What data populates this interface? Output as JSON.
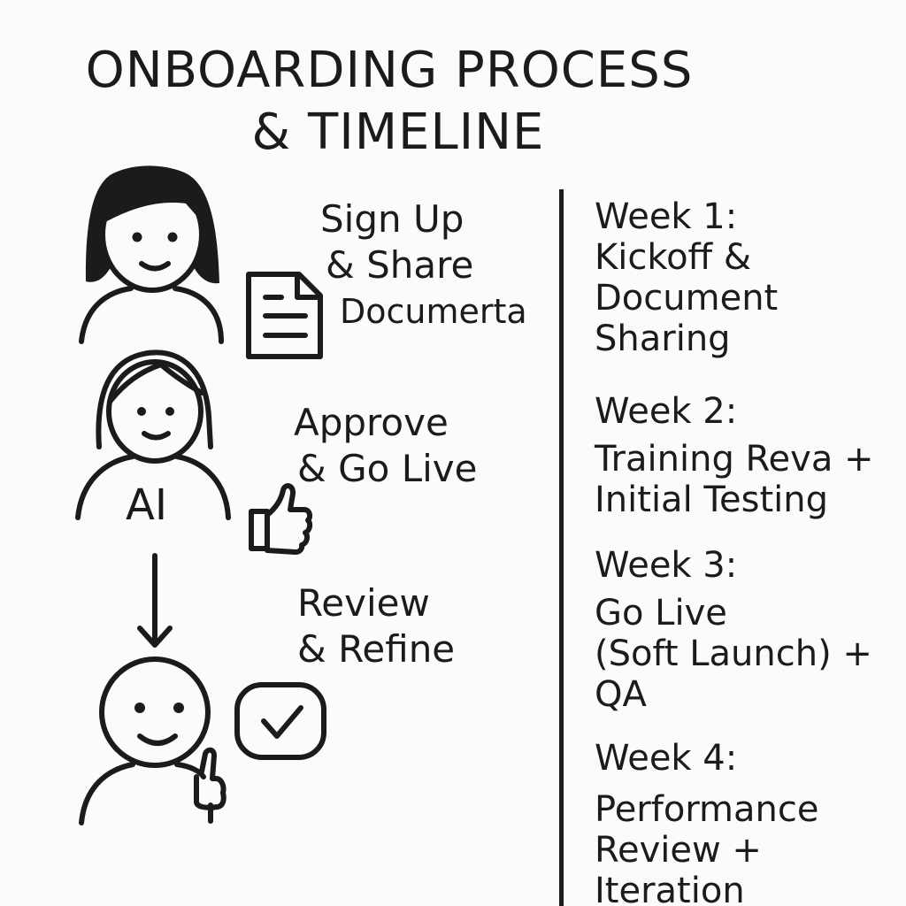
{
  "title": {
    "line1": "ONBOARDING PROCESS",
    "line2": "& TIMELINE"
  },
  "steps": [
    {
      "line1": "Sign Up",
      "line2": "& Share",
      "line3": "Documerta",
      "icon": "document-icon"
    },
    {
      "line1": "Approve",
      "line2": "& Go Live",
      "icon": "thumbs-up-icon"
    },
    {
      "line1": "Review",
      "line2": "& Refine",
      "icon": "checkmark-icon"
    }
  ],
  "ai_label": "AI",
  "timeline": [
    {
      "week": "Week 1:",
      "lines": [
        "Kickoff &",
        "Document",
        "Sharing"
      ]
    },
    {
      "week": "Week 2:",
      "lines": [
        "Training Reva +",
        "Initial Testing"
      ]
    },
    {
      "week": "Week 3:",
      "lines": [
        "Go Live",
        "(Soft Launch) +",
        "QA"
      ]
    },
    {
      "week": "Week 4:",
      "lines": [
        "Performance",
        "Review +",
        "Iteration"
      ]
    }
  ]
}
